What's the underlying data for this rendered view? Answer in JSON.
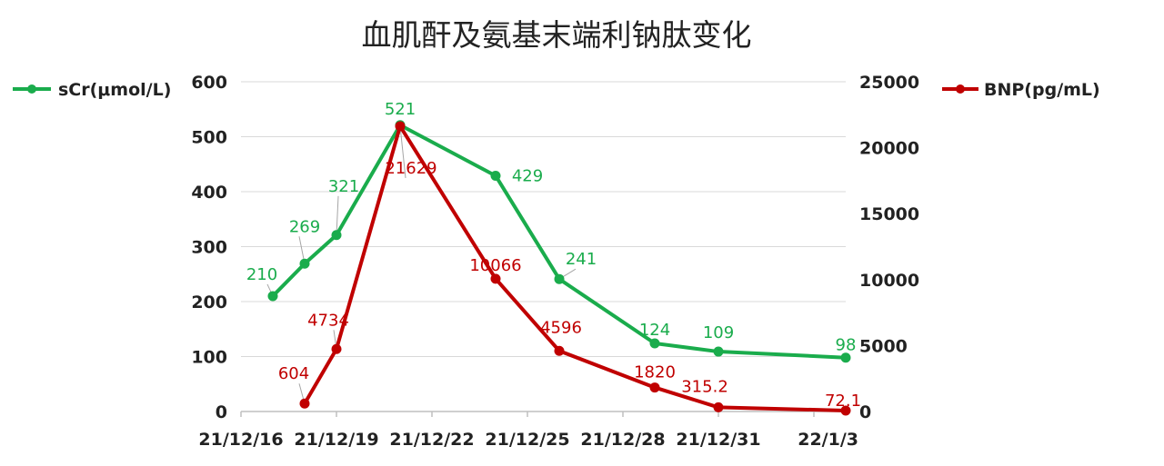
{
  "chart_data": {
    "type": "line",
    "title": "血肌酐及氨基末端利钠肽变化",
    "x_axis": {
      "type": "date",
      "ticks": [
        "21/12/16",
        "21/12/19",
        "21/12/22",
        "21/12/25",
        "21/12/28",
        "21/12/31",
        "22/1/3"
      ],
      "tick_dates": [
        "2021-12-16",
        "2021-12-19",
        "2021-12-22",
        "2021-12-25",
        "2021-12-28",
        "2021-12-31",
        "2022-01-03"
      ],
      "range": [
        "2021-12-16",
        "2022-01-03"
      ]
    },
    "y_left": {
      "min": 0,
      "max": 600,
      "step": 100,
      "ticks": [
        "0",
        "100",
        "200",
        "300",
        "400",
        "500",
        "600"
      ]
    },
    "y_right": {
      "min": 0,
      "max": 25000,
      "step": 5000,
      "ticks": [
        "0",
        "5000",
        "10000",
        "15000",
        "20000",
        "25000"
      ]
    },
    "grid": true,
    "legend": [
      {
        "name": "sCr(μmol/L)",
        "placement": "top-left"
      },
      {
        "name": "BNP(pg/mL)",
        "placement": "top-right"
      }
    ],
    "series": [
      {
        "name": "sCr(μmol/L)",
        "axis": "left",
        "color": "#1aac4c",
        "points": [
          {
            "x": "2021-12-17",
            "y": 210,
            "label": "210"
          },
          {
            "x": "2021-12-18",
            "y": 269,
            "label": "269"
          },
          {
            "x": "2021-12-19",
            "y": 321,
            "label": "321"
          },
          {
            "x": "2021-12-21",
            "y": 521,
            "label": "521"
          },
          {
            "x": "2021-12-24",
            "y": 429,
            "label": "429"
          },
          {
            "x": "2021-12-26",
            "y": 241,
            "label": "241"
          },
          {
            "x": "2021-12-29",
            "y": 124,
            "label": "124"
          },
          {
            "x": "2021-12-31",
            "y": 109,
            "label": "109"
          },
          {
            "x": "2022-01-04",
            "y": 98,
            "label": "98"
          }
        ]
      },
      {
        "name": "BNP(pg/mL)",
        "axis": "right",
        "color": "#c00000",
        "points": [
          {
            "x": "2021-12-18",
            "y": 604,
            "label": "604"
          },
          {
            "x": "2021-12-19",
            "y": 4734,
            "label": "4734"
          },
          {
            "x": "2021-12-21",
            "y": 21629,
            "label": "21629"
          },
          {
            "x": "2021-12-24",
            "y": 10066,
            "label": "10066"
          },
          {
            "x": "2021-12-26",
            "y": 4596,
            "label": "4596"
          },
          {
            "x": "2021-12-29",
            "y": 1820,
            "label": "1820"
          },
          {
            "x": "2021-12-31",
            "y": 315.2,
            "label": "315.2"
          },
          {
            "x": "2022-01-04",
            "y": 72.1,
            "label": "72.1"
          }
        ]
      }
    ]
  }
}
